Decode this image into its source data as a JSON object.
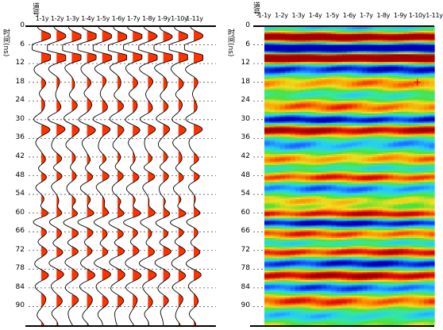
{
  "left_panel": {
    "channel_axis_title": "道号",
    "time_axis_title": "时间(ns)",
    "trace_labels": [
      "1-1y",
      "1-2y",
      "1-3y",
      "1-4y",
      "1-5y",
      "1-6y",
      "1-7y",
      "1-8y",
      "1-9y",
      "1-10y",
      "1-11y"
    ],
    "time_ticks": [
      "0",
      "6",
      "12",
      "18",
      "24",
      "30",
      "36",
      "42",
      "48",
      "54",
      "60",
      "66",
      "72",
      "78",
      "84",
      "90"
    ],
    "wiggle_fill_color": "#ff3300",
    "trace_color": "#000000"
  },
  "right_panel": {
    "channel_axis_title": "道号",
    "time_axis_title": "时间(ns)",
    "trace_labels": [
      "1-1y",
      "1-2y",
      "1-3y",
      "1-4y",
      "1-5y",
      "1-6y",
      "1-7y",
      "1-8y",
      "1-9y",
      "1-10y",
      "1-11y"
    ],
    "time_ticks": [
      "0",
      "6",
      "12",
      "18",
      "24",
      "30",
      "36",
      "42",
      "48",
      "54",
      "60",
      "66",
      "72",
      "78",
      "84",
      "90"
    ],
    "cursor_marker_color": "#ff0000",
    "colormap": [
      "#0000b0",
      "#1f5fff",
      "#27c8ff",
      "#33e8a0",
      "#52e030",
      "#f0e020",
      "#ff9000",
      "#e81010",
      "#a00000"
    ]
  }
}
